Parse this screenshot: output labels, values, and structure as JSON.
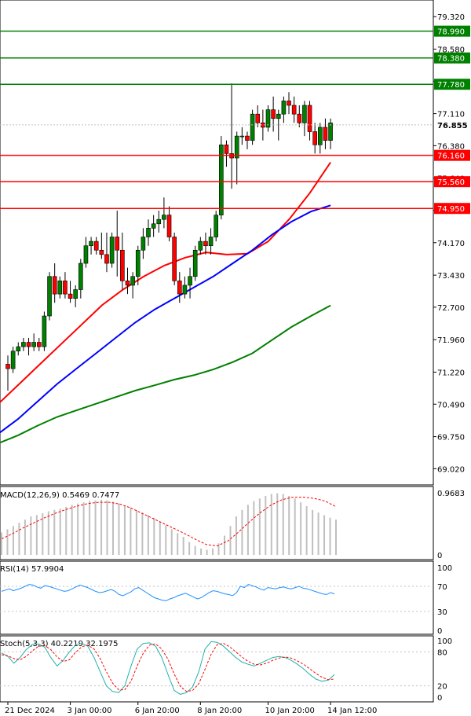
{
  "chart_data": [
    {
      "type": "candlestick",
      "panel": "price",
      "ylim": [
        68.65,
        79.7
      ],
      "y_ticks": [
        "79.320",
        "78.580",
        "77.850",
        "77.110",
        "76.380",
        "75.640",
        "74.910",
        "74.170",
        "73.430",
        "72.700",
        "71.960",
        "71.220",
        "70.490",
        "69.750",
        "69.020"
      ],
      "y_tick_values": [
        79.32,
        78.58,
        77.85,
        77.11,
        76.38,
        75.64,
        74.91,
        74.17,
        73.43,
        72.7,
        71.96,
        71.22,
        70.49,
        69.75,
        69.02
      ],
      "current_price": "76.855",
      "current_value": 76.855,
      "levels": [
        {
          "label": "78.990",
          "value": 78.99,
          "color": "#008000"
        },
        {
          "label": "78.380",
          "value": 78.38,
          "color": "#008000"
        },
        {
          "label": "77.780",
          "value": 77.78,
          "color": "#008000"
        },
        {
          "label": "76.160",
          "value": 76.16,
          "color": "#ff0000"
        },
        {
          "label": "75.560",
          "value": 75.56,
          "color": "#ff0000"
        },
        {
          "label": "74.950",
          "value": 74.95,
          "color": "#ff0000"
        }
      ],
      "candles": [
        [
          71.4,
          71.6,
          70.8,
          71.3
        ],
        [
          71.3,
          71.8,
          71.2,
          71.7
        ],
        [
          71.7,
          71.9,
          71.6,
          71.8
        ],
        [
          71.8,
          72.0,
          71.7,
          71.9
        ],
        [
          71.9,
          72.0,
          71.6,
          71.8
        ],
        [
          71.8,
          72.1,
          71.7,
          71.9
        ],
        [
          71.9,
          72.0,
          71.7,
          71.8
        ],
        [
          71.8,
          72.6,
          71.7,
          72.5
        ],
        [
          72.5,
          73.5,
          72.4,
          73.4
        ],
        [
          73.4,
          73.7,
          72.8,
          73.0
        ],
        [
          73.0,
          73.4,
          72.9,
          73.3
        ],
        [
          73.3,
          73.5,
          72.9,
          73.0
        ],
        [
          73.0,
          73.3,
          72.8,
          72.9
        ],
        [
          72.9,
          73.2,
          72.7,
          73.1
        ],
        [
          73.1,
          73.8,
          72.9,
          73.7
        ],
        [
          73.7,
          74.3,
          73.6,
          74.1
        ],
        [
          74.1,
          74.3,
          73.9,
          74.2
        ],
        [
          74.2,
          74.3,
          73.9,
          74.0
        ],
        [
          74.0,
          74.4,
          73.8,
          73.9
        ],
        [
          73.9,
          74.4,
          73.5,
          73.7
        ],
        [
          73.7,
          74.4,
          73.6,
          74.3
        ],
        [
          74.3,
          74.9,
          73.4,
          74.0
        ],
        [
          74.0,
          74.4,
          73.1,
          73.3
        ],
        [
          73.3,
          73.6,
          73.0,
          73.2
        ],
        [
          73.2,
          73.5,
          72.9,
          73.4
        ],
        [
          73.4,
          74.1,
          73.2,
          74.0
        ],
        [
          74.0,
          74.5,
          73.8,
          74.3
        ],
        [
          74.3,
          74.7,
          74.1,
          74.5
        ],
        [
          74.5,
          74.8,
          74.3,
          74.6
        ],
        [
          74.6,
          74.9,
          74.4,
          74.7
        ],
        [
          74.7,
          75.2,
          74.5,
          74.8
        ],
        [
          74.8,
          75.0,
          74.2,
          74.3
        ],
        [
          74.3,
          74.4,
          73.2,
          73.3
        ],
        [
          73.3,
          73.5,
          72.8,
          73.0
        ],
        [
          73.0,
          73.4,
          72.9,
          73.2
        ],
        [
          73.2,
          73.6,
          72.9,
          73.4
        ],
        [
          73.4,
          74.1,
          73.3,
          74.0
        ],
        [
          74.0,
          74.3,
          73.9,
          74.2
        ],
        [
          74.2,
          74.4,
          73.9,
          74.1
        ],
        [
          74.1,
          74.5,
          73.9,
          74.3
        ],
        [
          74.3,
          74.9,
          74.2,
          74.8
        ],
        [
          74.8,
          76.6,
          74.7,
          76.4
        ],
        [
          76.4,
          76.5,
          75.9,
          76.2
        ],
        [
          76.2,
          77.8,
          75.4,
          76.1
        ],
        [
          76.1,
          76.7,
          75.5,
          76.6
        ],
        [
          76.6,
          76.8,
          76.4,
          76.6
        ],
        [
          76.6,
          76.7,
          76.3,
          76.5
        ],
        [
          76.5,
          77.2,
          76.4,
          77.1
        ],
        [
          77.1,
          77.3,
          76.8,
          76.9
        ],
        [
          76.9,
          77.2,
          76.5,
          76.8
        ],
        [
          76.8,
          77.3,
          76.7,
          77.2
        ],
        [
          77.2,
          77.5,
          76.7,
          77.0
        ],
        [
          77.0,
          77.2,
          76.5,
          77.1
        ],
        [
          77.1,
          77.5,
          76.9,
          77.4
        ],
        [
          77.4,
          77.6,
          77.1,
          77.3
        ],
        [
          77.3,
          77.5,
          76.9,
          77.1
        ],
        [
          77.1,
          77.3,
          76.8,
          76.9
        ],
        [
          76.9,
          77.4,
          76.6,
          77.3
        ],
        [
          77.3,
          77.4,
          76.5,
          76.7
        ],
        [
          76.7,
          76.9,
          76.2,
          76.4
        ],
        [
          76.4,
          76.9,
          76.2,
          76.8
        ],
        [
          76.8,
          77.0,
          76.3,
          76.5
        ],
        [
          76.5,
          77.0,
          76.3,
          76.9
        ]
      ],
      "ma_series": [
        {
          "color": "#ff0000",
          "values": [
            70.5,
            70.95,
            71.4,
            71.85,
            72.3,
            72.75,
            73.1,
            73.4,
            73.65,
            73.83,
            73.95,
            73.9,
            73.92,
            74.2,
            74.7,
            75.3,
            76.0
          ]
        },
        {
          "color": "#0000ff",
          "values": [
            69.82,
            70.15,
            70.55,
            70.95,
            71.3,
            71.65,
            72.0,
            72.35,
            72.65,
            72.9,
            73.15,
            73.4,
            73.7,
            74.0,
            74.35,
            74.65,
            74.88,
            75.02
          ]
        },
        {
          "color": "#008000",
          "values": [
            69.6,
            69.78,
            70.0,
            70.2,
            70.35,
            70.5,
            70.65,
            70.8,
            70.92,
            71.05,
            71.15,
            71.28,
            71.45,
            71.65,
            71.95,
            72.25,
            72.5,
            72.74
          ]
        }
      ]
    },
    {
      "type": "histogram",
      "panel": "macd",
      "label": "MACD(12,26,9) 0.5469 0.7477",
      "ymax_label": "0.9683",
      "zero_label": "0",
      "ylim": [
        0,
        0.9683
      ],
      "histogram": [
        0.35,
        0.4,
        0.45,
        0.5,
        0.55,
        0.6,
        0.62,
        0.65,
        0.68,
        0.7,
        0.72,
        0.75,
        0.78,
        0.8,
        0.82,
        0.84,
        0.85,
        0.86,
        0.85,
        0.83,
        0.8,
        0.77,
        0.74,
        0.7,
        0.66,
        0.62,
        0.58,
        0.52,
        0.46,
        0.4,
        0.34,
        0.28,
        0.2,
        0.14,
        0.1,
        0.08,
        0.1,
        0.18,
        0.3,
        0.45,
        0.6,
        0.7,
        0.78,
        0.84,
        0.88,
        0.92,
        0.95,
        0.96,
        0.95,
        0.92,
        0.88,
        0.82,
        0.76,
        0.7,
        0.66,
        0.62,
        0.58,
        0.55
      ],
      "signal": [
        0.25,
        0.33,
        0.42,
        0.5,
        0.58,
        0.65,
        0.71,
        0.76,
        0.8,
        0.82,
        0.82,
        0.79,
        0.73,
        0.65,
        0.57,
        0.49,
        0.41,
        0.33,
        0.24,
        0.16,
        0.14,
        0.22,
        0.36,
        0.52,
        0.66,
        0.78,
        0.86,
        0.9,
        0.9,
        0.88,
        0.84,
        0.75
      ]
    },
    {
      "type": "line",
      "panel": "rsi",
      "label": "RSI(14) 57.9904",
      "ylim": [
        0,
        100
      ],
      "y_ticks": [
        "100",
        "70",
        "30",
        "0"
      ],
      "y_tick_values": [
        100,
        70,
        30,
        0
      ],
      "values": [
        62,
        64,
        66,
        63,
        65,
        67,
        70,
        73,
        72,
        69,
        67,
        71,
        70,
        68,
        66,
        64,
        62,
        63,
        66,
        69,
        72,
        70,
        68,
        65,
        62,
        60,
        61,
        63,
        65,
        62,
        57,
        55,
        58,
        61,
        66,
        68,
        64,
        60,
        56,
        52,
        50,
        48,
        47,
        50,
        52,
        55,
        57,
        59,
        56,
        53,
        50,
        52,
        56,
        60,
        63,
        62,
        60,
        58,
        57,
        55,
        60,
        70,
        68,
        73,
        71,
        69,
        66,
        64,
        68,
        67,
        66,
        68,
        69,
        67,
        66,
        68,
        70,
        67,
        66,
        64,
        62,
        60,
        58,
        57,
        60,
        58
      ]
    },
    {
      "type": "line",
      "panel": "stoch",
      "label": "Stoch(5,3,3) 40.2219 32.1975",
      "ylim": [
        0,
        100
      ],
      "y_ticks": [
        "100",
        "80",
        "20",
        "0"
      ],
      "y_tick_values": [
        100,
        80,
        20,
        0
      ],
      "x_ticks": [
        "21 Dec 2024",
        "3 Jan 00:00",
        "6 Jan 20:00",
        "8 Jan 20:00",
        "10 Jan 20:00",
        "14 Jan 12:00"
      ],
      "x_tick_candle_index": [
        0,
        12,
        25,
        37,
        50,
        62
      ],
      "k": [
        78,
        72,
        60,
        70,
        84,
        93,
        94,
        88,
        70,
        55,
        65,
        80,
        92,
        95,
        90,
        70,
        45,
        20,
        10,
        8,
        20,
        55,
        85,
        95,
        96,
        90,
        70,
        40,
        12,
        5,
        8,
        18,
        45,
        85,
        98,
        97,
        90,
        80,
        70,
        62,
        58,
        55,
        60,
        65,
        70,
        72,
        70,
        65,
        58,
        50,
        40,
        32,
        28,
        30,
        40
      ],
      "d": [
        75,
        73,
        68,
        66,
        72,
        82,
        90,
        91,
        84,
        71,
        63,
        66,
        79,
        89,
        92,
        85,
        68,
        45,
        25,
        13,
        13,
        28,
        55,
        78,
        92,
        94,
        85,
        67,
        41,
        19,
        10,
        12,
        24,
        49,
        76,
        93,
        95,
        89,
        80,
        71,
        63,
        58,
        57,
        60,
        65,
        69,
        71,
        69,
        64,
        58,
        50,
        42,
        35,
        31,
        32
      ]
    }
  ]
}
